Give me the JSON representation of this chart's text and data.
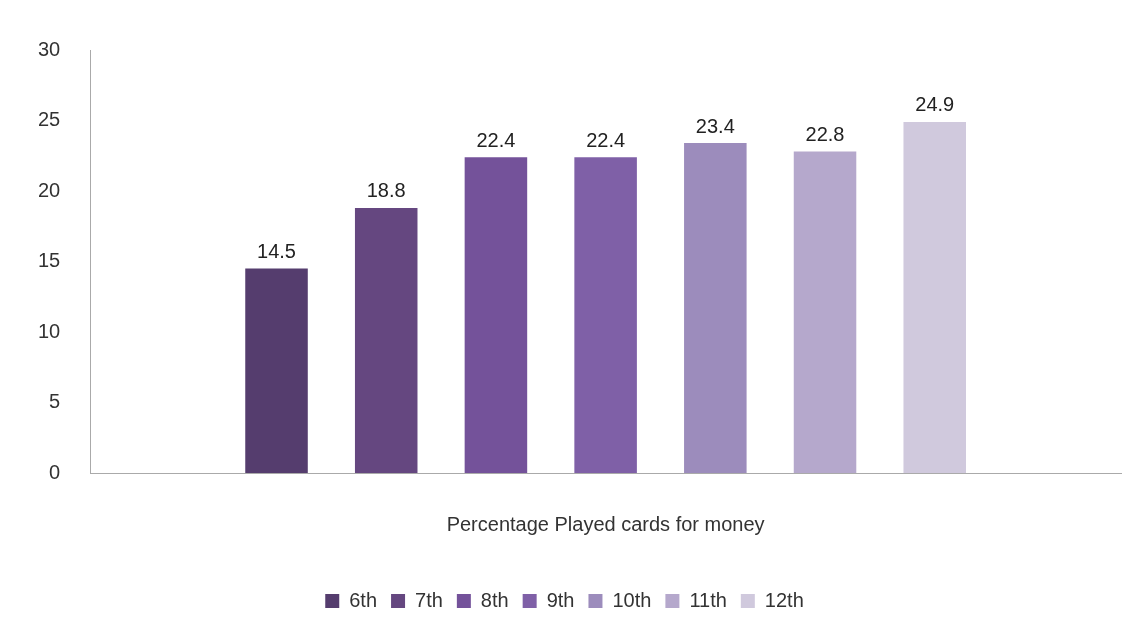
{
  "chart_data": {
    "type": "bar",
    "categories": [
      "Percentage Played cards for money"
    ],
    "series": [
      {
        "name": "6th",
        "color": "#553d6e",
        "values": [
          14.5
        ]
      },
      {
        "name": "7th",
        "color": "#654780",
        "values": [
          18.8
        ]
      },
      {
        "name": "8th",
        "color": "#74529a",
        "values": [
          22.4
        ]
      },
      {
        "name": "9th",
        "color": "#7f60a7",
        "values": [
          22.4
        ]
      },
      {
        "name": "10th",
        "color": "#9c8cbc",
        "values": [
          23.4
        ]
      },
      {
        "name": "11th",
        "color": "#b5a8cc",
        "values": [
          22.8
        ]
      },
      {
        "name": "12th",
        "color": "#d0c9dd",
        "values": [
          24.9
        ]
      }
    ],
    "ylim": [
      0,
      30
    ],
    "yticks": [
      0,
      5,
      10,
      15,
      20,
      25,
      30
    ],
    "grid": false,
    "legend": "bottom",
    "data_labels": true
  }
}
